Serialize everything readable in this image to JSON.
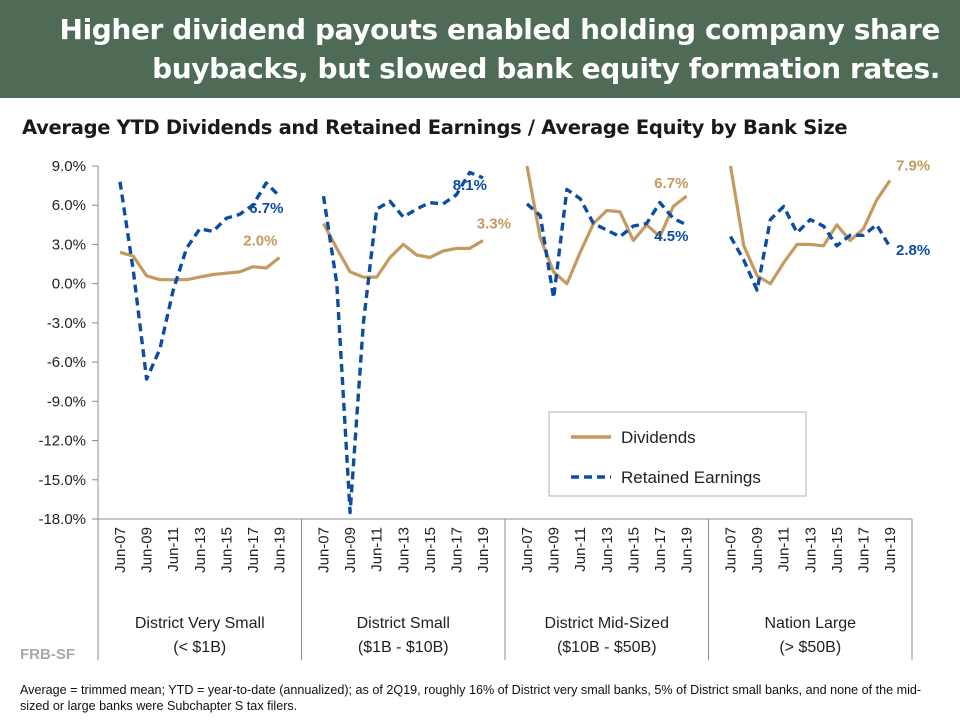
{
  "banner": {
    "line1": "Higher dividend payouts enabled holding company share",
    "line2": "buybacks, but slowed bank equity formation rates."
  },
  "colors": {
    "banner_bg": "#4f6b56",
    "dividends": "#c49a5e",
    "retained": "#0c4da2"
  },
  "watermark": "FRB-SF",
  "footnote": "Average = trimmed mean; YTD = year-to-date (annualized); as of 2Q19, roughly 16% of District very small banks, 5% of District small banks, and none of the mid-sized or large banks were Subchapter S tax filers.",
  "chart_data": {
    "type": "line",
    "title": "Average YTD Dividends and Retained Earnings / Average Equity by Bank Size",
    "ylim": [
      -18,
      9
    ],
    "y_ticks": [
      9,
      6,
      3,
      0,
      -3,
      -6,
      -9,
      -12,
      -15,
      -18
    ],
    "y_tick_labels": [
      "9.0%",
      "6.0%",
      "3.0%",
      "0.0%",
      "-3.0%",
      "-6.0%",
      "-9.0%",
      "-12.0%",
      "-15.0%",
      "-18.0%"
    ],
    "x": [
      "Jun-07",
      "Jun-08",
      "Jun-09",
      "Jun-10",
      "Jun-11",
      "Jun-12",
      "Jun-13",
      "Jun-14",
      "Jun-15",
      "Jun-16",
      "Jun-17",
      "Jun-18",
      "Jun-19"
    ],
    "x_tick_labels": [
      "Jun-07",
      "Jun-09",
      "Jun-11",
      "Jun-13",
      "Jun-15",
      "Jun-17",
      "Jun-19"
    ],
    "legend": {
      "placement": "lower-right",
      "entries": [
        "Dividends",
        "Retained Earnings"
      ]
    },
    "groups": [
      {
        "name": "District Very Small",
        "sub": "(< $1B)",
        "series": [
          {
            "name": "Dividends",
            "values": [
              2.4,
              2.1,
              0.6,
              0.3,
              0.3,
              0.3,
              0.5,
              0.7,
              0.8,
              0.9,
              1.3,
              1.2,
              2.0
            ],
            "end_label": "2.0%"
          },
          {
            "name": "Retained Earnings",
            "values": [
              7.8,
              1.0,
              -7.3,
              -5.0,
              -0.5,
              2.7,
              4.2,
              4.0,
              5.0,
              5.3,
              6.0,
              7.7,
              6.7
            ],
            "end_label": "6.7%"
          }
        ]
      },
      {
        "name": "District Small",
        "sub": "($1B - $10B)",
        "series": [
          {
            "name": "Dividends",
            "values": [
              4.6,
              2.7,
              0.9,
              0.5,
              0.5,
              2.0,
              3.0,
              2.2,
              2.0,
              2.5,
              2.7,
              2.7,
              3.3
            ],
            "end_label": "3.3%"
          },
          {
            "name": "Retained Earnings",
            "values": [
              6.7,
              0.0,
              -17.5,
              -3.0,
              5.7,
              6.3,
              5.1,
              5.7,
              6.2,
              6.1,
              6.8,
              8.5,
              8.1
            ],
            "end_label": "8.1%"
          }
        ]
      },
      {
        "name": "District Mid-Sized",
        "sub": "($10B - $50B)",
        "series": [
          {
            "name": "Dividends",
            "values": [
              9.0,
              3.5,
              0.9,
              0.0,
              2.4,
              4.6,
              5.6,
              5.5,
              3.3,
              4.5,
              3.6,
              5.9,
              6.7
            ],
            "end_label": "6.7%"
          },
          {
            "name": "Retained Earnings",
            "values": [
              6.1,
              5.2,
              -1.1,
              7.2,
              6.5,
              4.6,
              4.1,
              3.6,
              4.4,
              4.6,
              6.2,
              5.0,
              4.5
            ],
            "end_label": "4.5%"
          }
        ]
      },
      {
        "name": "Nation Large",
        "sub": "(> $50B)",
        "series": [
          {
            "name": "Dividends",
            "values": [
              9.0,
              2.9,
              0.6,
              0.0,
              1.6,
              3.0,
              3.0,
              2.9,
              4.5,
              3.3,
              4.2,
              6.4,
              7.9
            ],
            "end_label": "7.9%"
          },
          {
            "name": "Retained Earnings",
            "values": [
              3.6,
              1.8,
              -0.5,
              4.9,
              5.9,
              3.9,
              4.9,
              4.4,
              2.9,
              3.7,
              3.7,
              4.5,
              2.8
            ],
            "end_label": "2.8%"
          }
        ]
      }
    ]
  }
}
